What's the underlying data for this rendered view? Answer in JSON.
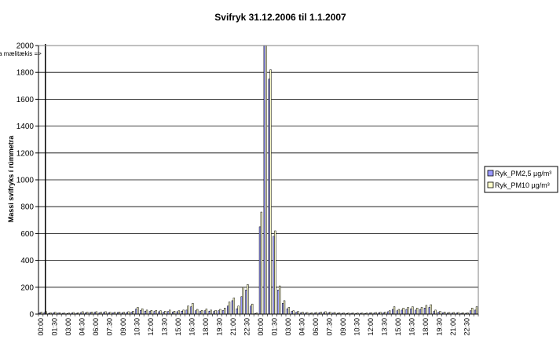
{
  "chart_data": {
    "type": "bar",
    "title": "Svifryk 31.12.2006 til 1.1.2007",
    "ylabel": "Massi svifryks í rúmmetra",
    "xlabel": "",
    "ylim": [
      0,
      2000
    ],
    "yticks": [
      0,
      200,
      400,
      600,
      800,
      1000,
      1200,
      1400,
      1600,
      1800,
      2000
    ],
    "grid": "horizontal",
    "legend_position": "right",
    "annotation": "Rykmagn sprengdi skala mælitækis    =>",
    "annotation_at": "00:30",
    "colors": {
      "pm25": "#9999ff",
      "pm10": "#ffffcc",
      "axis": "#000000",
      "grid": "#000000",
      "marker": "#000000"
    },
    "categories": [
      "00:00",
      "00:30",
      "01:00",
      "01:30",
      "02:00",
      "02:30",
      "03:00",
      "03:30",
      "04:00",
      "04:30",
      "05:00",
      "05:30",
      "06:00",
      "06:30",
      "07:00",
      "07:30",
      "08:00",
      "08:30",
      "09:00",
      "09:30",
      "10:00",
      "10:30",
      "11:00",
      "11:30",
      "12:00",
      "12:30",
      "13:00",
      "13:30",
      "14:00",
      "14:30",
      "15:00",
      "15:30",
      "16:00",
      "16:30",
      "17:00",
      "17:30",
      "18:00",
      "18:30",
      "19:00",
      "19:30",
      "20:00",
      "20:30",
      "21:00",
      "21:30",
      "22:00",
      "22:30",
      "23:00",
      "23:30",
      "00:00",
      "00:30",
      "01:00",
      "01:30",
      "02:00",
      "02:30",
      "03:00",
      "03:30",
      "04:00",
      "04:30",
      "05:00",
      "05:30",
      "06:00",
      "06:30",
      "07:00",
      "07:30",
      "08:00",
      "08:30",
      "09:00",
      "09:30",
      "10:00",
      "10:30",
      "11:00",
      "11:30",
      "12:00",
      "12:30",
      "13:00",
      "13:30",
      "14:00",
      "14:30",
      "15:00",
      "15:30",
      "16:00",
      "16:30",
      "17:00",
      "17:30",
      "18:00",
      "18:30",
      "19:00",
      "19:30",
      "20:00",
      "20:30",
      "21:00",
      "21:30",
      "22:00",
      "22:30",
      "23:00",
      "23:30"
    ],
    "series": [
      {
        "name": "Ryk_PM2,5 µg/m³",
        "color": "#9999ff",
        "values": [
          10,
          12,
          6,
          10,
          8,
          6,
          5,
          8,
          6,
          12,
          10,
          12,
          14,
          10,
          14,
          10,
          10,
          12,
          10,
          12,
          15,
          38,
          28,
          22,
          20,
          20,
          18,
          15,
          20,
          15,
          18,
          22,
          30,
          55,
          25,
          20,
          25,
          22,
          20,
          25,
          28,
          60,
          100,
          40,
          130,
          180,
          60,
          5,
          650,
          2000,
          1750,
          580,
          180,
          80,
          40,
          20,
          15,
          10,
          8,
          6,
          8,
          10,
          12,
          10,
          8,
          6,
          6,
          5,
          6,
          5,
          6,
          5,
          8,
          8,
          10,
          10,
          18,
          35,
          25,
          30,
          35,
          40,
          30,
          35,
          45,
          50,
          20,
          15,
          10,
          8,
          8,
          8,
          6,
          6,
          25,
          30
        ]
      },
      {
        "name": "Ryk_PM10 µg/m³",
        "color": "#ffffcc",
        "values": [
          15,
          18,
          10,
          14,
          10,
          8,
          8,
          12,
          10,
          18,
          15,
          16,
          18,
          14,
          18,
          14,
          14,
          16,
          14,
          18,
          22,
          50,
          40,
          30,
          28,
          28,
          25,
          22,
          30,
          22,
          25,
          30,
          60,
          80,
          35,
          28,
          38,
          30,
          28,
          35,
          45,
          90,
          120,
          60,
          200,
          220,
          75,
          8,
          760,
          2000,
          1820,
          620,
          210,
          100,
          50,
          25,
          20,
          15,
          12,
          10,
          12,
          15,
          18,
          15,
          12,
          10,
          8,
          8,
          8,
          8,
          8,
          8,
          10,
          12,
          14,
          15,
          25,
          55,
          35,
          45,
          50,
          55,
          45,
          50,
          65,
          70,
          30,
          20,
          15,
          12,
          12,
          12,
          10,
          10,
          45,
          55
        ]
      }
    ],
    "xtick_labels": [
      "00:00",
      "01:30",
      "03:00",
      "04:30",
      "06:00",
      "07:30",
      "09:00",
      "10:30",
      "12:00",
      "13:30",
      "15:00",
      "16:30",
      "18:00",
      "19:30",
      "21:00",
      "22:30",
      "00:00",
      "01:30",
      "03:00",
      "04:30",
      "06:00",
      "07:30",
      "09:00",
      "10:30",
      "12:00",
      "13:30",
      "15:00",
      "16:30",
      "18:00",
      "19:30",
      "21:00",
      "22:30"
    ]
  }
}
